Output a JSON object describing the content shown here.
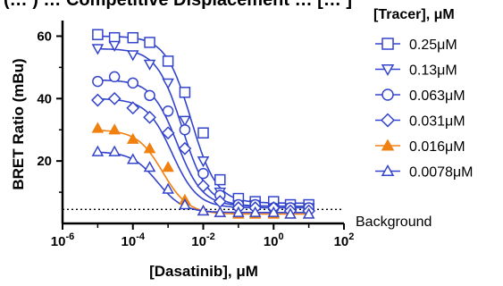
{
  "chart_data": {
    "type": "scatter",
    "title": "(… ) … Competitive Displacement … [… ]",
    "xlabel": "[Dasatinib], μM",
    "ylabel": "BRET Ratio (mBu)",
    "x_scale": "log",
    "xlim": [
      1e-06,
      100
    ],
    "ylim": [
      0,
      65
    ],
    "x_ticks": [
      {
        "value": 1e-06,
        "base": "10",
        "exp": "-6"
      },
      {
        "value": 0.0001,
        "base": "10",
        "exp": "-4"
      },
      {
        "value": 0.01,
        "base": "10",
        "exp": "-2"
      },
      {
        "value": 1,
        "base": "10",
        "exp": "0"
      },
      {
        "value": 100,
        "base": "10",
        "exp": "2"
      }
    ],
    "y_ticks": [
      "20",
      "40",
      "60"
    ],
    "legend_title": "[Tracer], μM",
    "legend_position": "right",
    "x": [
      1e-05,
      3e-05,
      0.0001,
      0.0003,
      0.001,
      0.003,
      0.01,
      0.03,
      0.1,
      0.3,
      1,
      3,
      10
    ],
    "series": [
      {
        "name": "0.25μM",
        "marker": "square",
        "filled": false,
        "color": "#3344cc",
        "values": [
          60.5,
          59.5,
          59.5,
          58,
          52,
          42,
          29,
          14,
          8,
          7,
          7,
          6,
          6
        ],
        "fit": {
          "top": 60,
          "bottom": 6.5,
          "ic50": 0.0045,
          "hill": 1.2
        }
      },
      {
        "name": "0.13μM",
        "marker": "triangle-down",
        "filled": false,
        "color": "#3344cc",
        "values": [
          56,
          57,
          54,
          51,
          45,
          33,
          20,
          10,
          6,
          6,
          5,
          5,
          5
        ],
        "fit": {
          "top": 56,
          "bottom": 5.5,
          "ic50": 0.0025,
          "hill": 1.2
        }
      },
      {
        "name": "0.063μM",
        "marker": "circle",
        "filled": false,
        "color": "#3344cc",
        "values": [
          45.5,
          47,
          45,
          41,
          36,
          30,
          16,
          9,
          6,
          6,
          5,
          5,
          5
        ],
        "fit": {
          "top": 46,
          "bottom": 5.5,
          "ic50": 0.0018,
          "hill": 1.2
        }
      },
      {
        "name": "0.031μM",
        "marker": "diamond",
        "filled": false,
        "color": "#3344cc",
        "values": [
          39.5,
          40,
          37,
          34,
          29,
          24,
          12,
          7,
          5,
          5,
          5,
          4,
          4
        ],
        "fit": {
          "top": 40,
          "bottom": 5,
          "ic50": 0.0013,
          "hill": 1.2
        }
      },
      {
        "name": "0.016μM",
        "marker": "triangle-up",
        "filled": true,
        "color": "#f08010",
        "values": [
          30.5,
          30,
          27,
          24,
          18,
          7.5,
          4,
          3.5,
          3,
          3,
          3,
          3,
          3
        ],
        "fit": {
          "top": 30,
          "bottom": 3,
          "ic50": 0.0007,
          "hill": 1.2
        }
      },
      {
        "name": "0.0078μM",
        "marker": "triangle-up",
        "filled": false,
        "color": "#3344cc",
        "values": [
          23,
          23,
          20.5,
          18,
          11,
          6,
          4,
          3.5,
          3.5,
          3.5,
          3.5,
          3,
          3
        ],
        "fit": {
          "top": 23,
          "bottom": 3.5,
          "ic50": 0.0005,
          "hill": 1.2
        }
      }
    ],
    "background": {
      "label": "Background",
      "value": 4.5,
      "style": "dotted"
    }
  }
}
